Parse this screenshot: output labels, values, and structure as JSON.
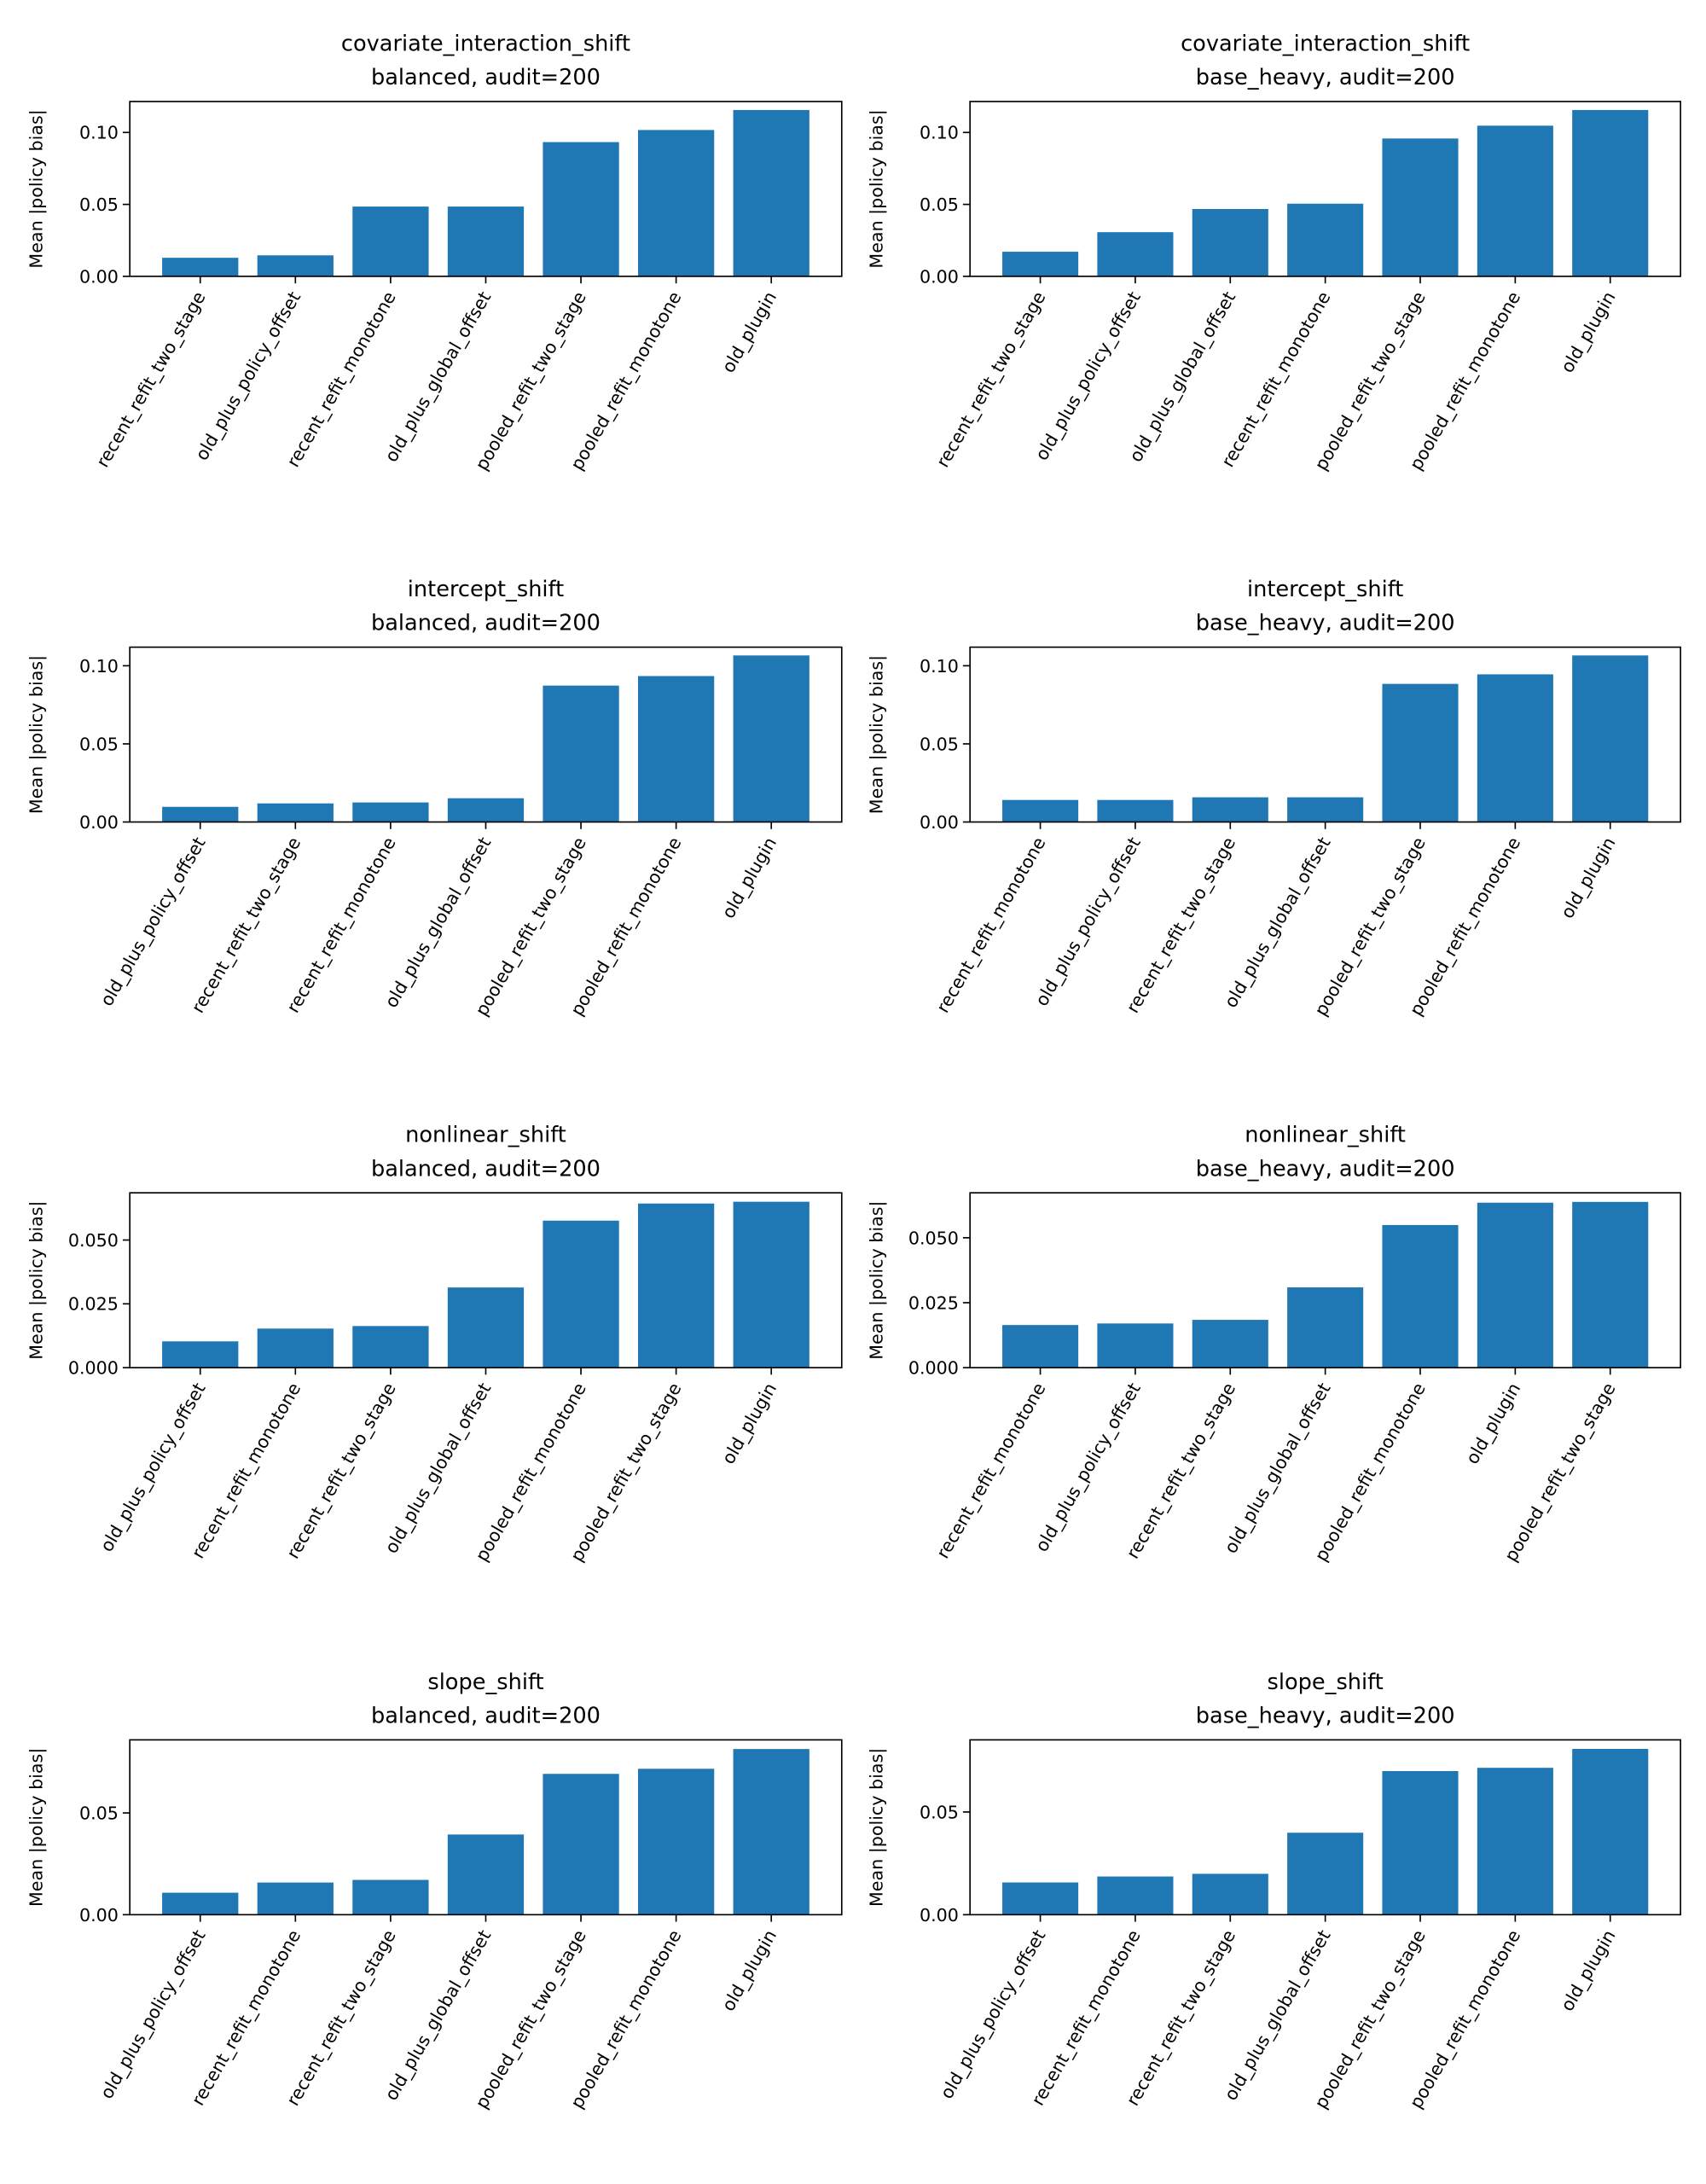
{
  "chart_data": [
    {
      "type": "bar",
      "title": "covariate_interaction_shift",
      "subtitle": "balanced, audit=200",
      "ylabel": "Mean |policy bias|",
      "ylim": [
        0,
        0.1215
      ],
      "yticks": [
        0,
        0.05,
        0.1
      ],
      "ytick_labels": [
        "0.00",
        "0.05",
        "0.10"
      ],
      "grid": false,
      "bar_color": "#1f77b4",
      "categories": [
        "recent_refit_two_stage",
        "old_plus_policy_offset",
        "recent_refit_monotone",
        "old_plus_global_offset",
        "pooled_refit_two_stage",
        "pooled_refit_monotone",
        "old_plugin"
      ],
      "values": [
        0.0129,
        0.0146,
        0.0485,
        0.0485,
        0.0933,
        0.1017,
        0.1156
      ]
    },
    {
      "type": "bar",
      "title": "covariate_interaction_shift",
      "subtitle": "base_heavy, audit=200",
      "ylabel": "Mean |policy bias|",
      "ylim": [
        0,
        0.1215
      ],
      "yticks": [
        0,
        0.05,
        0.1
      ],
      "ytick_labels": [
        "0.00",
        "0.05",
        "0.10"
      ],
      "grid": false,
      "bar_color": "#1f77b4",
      "categories": [
        "recent_refit_two_stage",
        "old_plus_policy_offset",
        "old_plus_global_offset",
        "recent_refit_monotone",
        "pooled_refit_two_stage",
        "pooled_refit_monotone",
        "old_plugin"
      ],
      "values": [
        0.0171,
        0.0307,
        0.0468,
        0.0505,
        0.0958,
        0.1047,
        0.1156
      ]
    },
    {
      "type": "bar",
      "title": "intercept_shift",
      "subtitle": "balanced, audit=200",
      "ylabel": "Mean |policy bias|",
      "ylim": [
        0,
        0.1119
      ],
      "yticks": [
        0,
        0.05,
        0.1
      ],
      "ytick_labels": [
        "0.00",
        "0.05",
        "0.10"
      ],
      "grid": false,
      "bar_color": "#1f77b4",
      "categories": [
        "old_plus_policy_offset",
        "recent_refit_two_stage",
        "recent_refit_monotone",
        "old_plus_global_offset",
        "pooled_refit_two_stage",
        "pooled_refit_monotone",
        "old_plugin"
      ],
      "values": [
        0.0097,
        0.0119,
        0.0125,
        0.0152,
        0.0873,
        0.0934,
        0.1066
      ]
    },
    {
      "type": "bar",
      "title": "intercept_shift",
      "subtitle": "base_heavy, audit=200",
      "ylabel": "Mean |policy bias|",
      "ylim": [
        0,
        0.1119
      ],
      "yticks": [
        0,
        0.05,
        0.1
      ],
      "ytick_labels": [
        "0.00",
        "0.05",
        "0.10"
      ],
      "grid": false,
      "bar_color": "#1f77b4",
      "categories": [
        "recent_refit_monotone",
        "old_plus_policy_offset",
        "recent_refit_two_stage",
        "old_plus_global_offset",
        "pooled_refit_two_stage",
        "pooled_refit_monotone",
        "old_plugin"
      ],
      "values": [
        0.0141,
        0.0141,
        0.0158,
        0.0158,
        0.0884,
        0.0945,
        0.1066
      ]
    },
    {
      "type": "bar",
      "title": "nonlinear_shift",
      "subtitle": "balanced, audit=200",
      "ylabel": "Mean |policy bias|",
      "ylim": [
        0,
        0.0685
      ],
      "yticks": [
        0,
        0.025,
        0.05
      ],
      "ytick_labels": [
        "0.000",
        "0.025",
        "0.050"
      ],
      "grid": false,
      "bar_color": "#1f77b4",
      "categories": [
        "old_plus_policy_offset",
        "recent_refit_monotone",
        "recent_refit_two_stage",
        "old_plus_global_offset",
        "pooled_refit_monotone",
        "pooled_refit_two_stage",
        "old_plugin"
      ],
      "values": [
        0.0103,
        0.0153,
        0.0163,
        0.0314,
        0.0576,
        0.0643,
        0.065
      ]
    },
    {
      "type": "bar",
      "title": "nonlinear_shift",
      "subtitle": "base_heavy, audit=200",
      "ylabel": "Mean |policy bias|",
      "ylim": [
        0,
        0.0673
      ],
      "yticks": [
        0,
        0.025,
        0.05
      ],
      "ytick_labels": [
        "0.000",
        "0.025",
        "0.050"
      ],
      "grid": false,
      "bar_color": "#1f77b4",
      "categories": [
        "recent_refit_monotone",
        "old_plus_policy_offset",
        "recent_refit_two_stage",
        "old_plus_global_offset",
        "pooled_refit_monotone",
        "old_plugin",
        "pooled_refit_two_stage"
      ],
      "values": [
        0.0164,
        0.017,
        0.0184,
        0.0309,
        0.0549,
        0.0635,
        0.0638
      ]
    },
    {
      "type": "bar",
      "title": "slope_shift",
      "subtitle": "balanced, audit=200",
      "ylabel": "Mean |policy bias|",
      "ylim": [
        0,
        0.0859
      ],
      "yticks": [
        0,
        0.05
      ],
      "ytick_labels": [
        "0.00",
        "0.05"
      ],
      "grid": false,
      "bar_color": "#1f77b4",
      "categories": [
        "old_plus_policy_offset",
        "recent_refit_monotone",
        "recent_refit_two_stage",
        "old_plus_global_offset",
        "pooled_refit_two_stage",
        "pooled_refit_monotone",
        "old_plugin"
      ],
      "values": [
        0.0108,
        0.0158,
        0.0171,
        0.0394,
        0.0692,
        0.0717,
        0.0814
      ]
    },
    {
      "type": "bar",
      "title": "slope_shift",
      "subtitle": "base_heavy, audit=200",
      "ylabel": "Mean |policy bias|",
      "ylim": [
        0,
        0.0851
      ],
      "yticks": [
        0,
        0.05
      ],
      "ytick_labels": [
        "0.00",
        "0.05"
      ],
      "grid": false,
      "bar_color": "#1f77b4",
      "categories": [
        "old_plus_policy_offset",
        "recent_refit_monotone",
        "recent_refit_two_stage",
        "old_plus_global_offset",
        "pooled_refit_two_stage",
        "pooled_refit_monotone",
        "old_plugin"
      ],
      "values": [
        0.0157,
        0.0186,
        0.0199,
        0.0399,
        0.0699,
        0.0715,
        0.0807
      ]
    }
  ]
}
